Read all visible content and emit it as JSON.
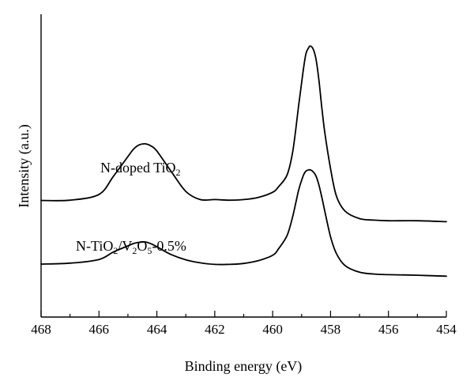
{
  "chart_data": {
    "type": "line",
    "xlabel": "Binding energy (eV)",
    "ylabel": "Intensity (a.u.)",
    "xlim": [
      468,
      454
    ],
    "x_reversed": true,
    "y_ticks_shown": false,
    "ylim": [
      0,
      100
    ],
    "xticks": [
      "468",
      "466",
      "464",
      "462",
      "460",
      "458",
      "456",
      "454"
    ],
    "grid": false,
    "legend": "none",
    "series": [
      {
        "name": "N-doped TiO2",
        "x": [
          468,
          467,
          466,
          465.5,
          465,
          464.8,
          464.6,
          464.4,
          464.2,
          464,
          463.5,
          463,
          462.5,
          462,
          461.5,
          461,
          460.5,
          460,
          459.8,
          459.5,
          459.3,
          459.1,
          458.95,
          458.85,
          458.75,
          458.7,
          458.6,
          458.5,
          458.4,
          458.3,
          458.2,
          458.0,
          457.8,
          457.5,
          457.0,
          456.5,
          456,
          455,
          454
        ],
        "y": [
          38.5,
          38.6,
          40.5,
          46.5,
          53,
          55.5,
          56.9,
          57.2,
          56.5,
          54.8,
          48,
          41.5,
          38.8,
          38.8,
          38.6,
          38.8,
          39.5,
          41.2,
          43,
          47,
          55,
          70,
          81,
          87,
          89,
          89.5,
          88.5,
          85,
          78,
          69,
          61,
          49,
          40,
          35,
          32.5,
          32,
          31.8,
          31.8,
          31.5
        ]
      },
      {
        "name": "N-TiO2/V2O5-0.5%",
        "x": [
          468,
          467,
          466,
          465.5,
          465,
          464.8,
          464.6,
          464.4,
          464.2,
          464,
          463.5,
          463,
          462.5,
          462,
          461.5,
          461,
          460.5,
          460,
          459.8,
          459.5,
          459.3,
          459.1,
          458.95,
          458.85,
          458.75,
          458.7,
          458.6,
          458.5,
          458.4,
          458.3,
          458.2,
          458.0,
          457.8,
          457.5,
          457.0,
          456.5,
          456,
          455,
          454
        ],
        "y": [
          17.5,
          17.8,
          19.0,
          21.5,
          23.5,
          24.3,
          24.7,
          24.8,
          24.2,
          23.2,
          20.6,
          18.9,
          17.9,
          17.4,
          17.4,
          17.7,
          18.6,
          20.4,
          22.5,
          27,
          33.5,
          42,
          46.5,
          48.2,
          48.6,
          48.6,
          48.0,
          46.5,
          43.5,
          39.5,
          35.0,
          26.5,
          21.0,
          17.0,
          14.8,
          14.2,
          14.0,
          13.8,
          13.5
        ]
      }
    ],
    "annotations": {
      "n_doped": "N-doped TiO",
      "n_doped_sub": "2",
      "vo_part1": "N-TiO",
      "vo_sub1": "2",
      "vo_part2": "/V",
      "vo_sub2": "2",
      "vo_part3": "O",
      "vo_sub3": "5",
      "vo_part4": "-0.5%"
    }
  }
}
